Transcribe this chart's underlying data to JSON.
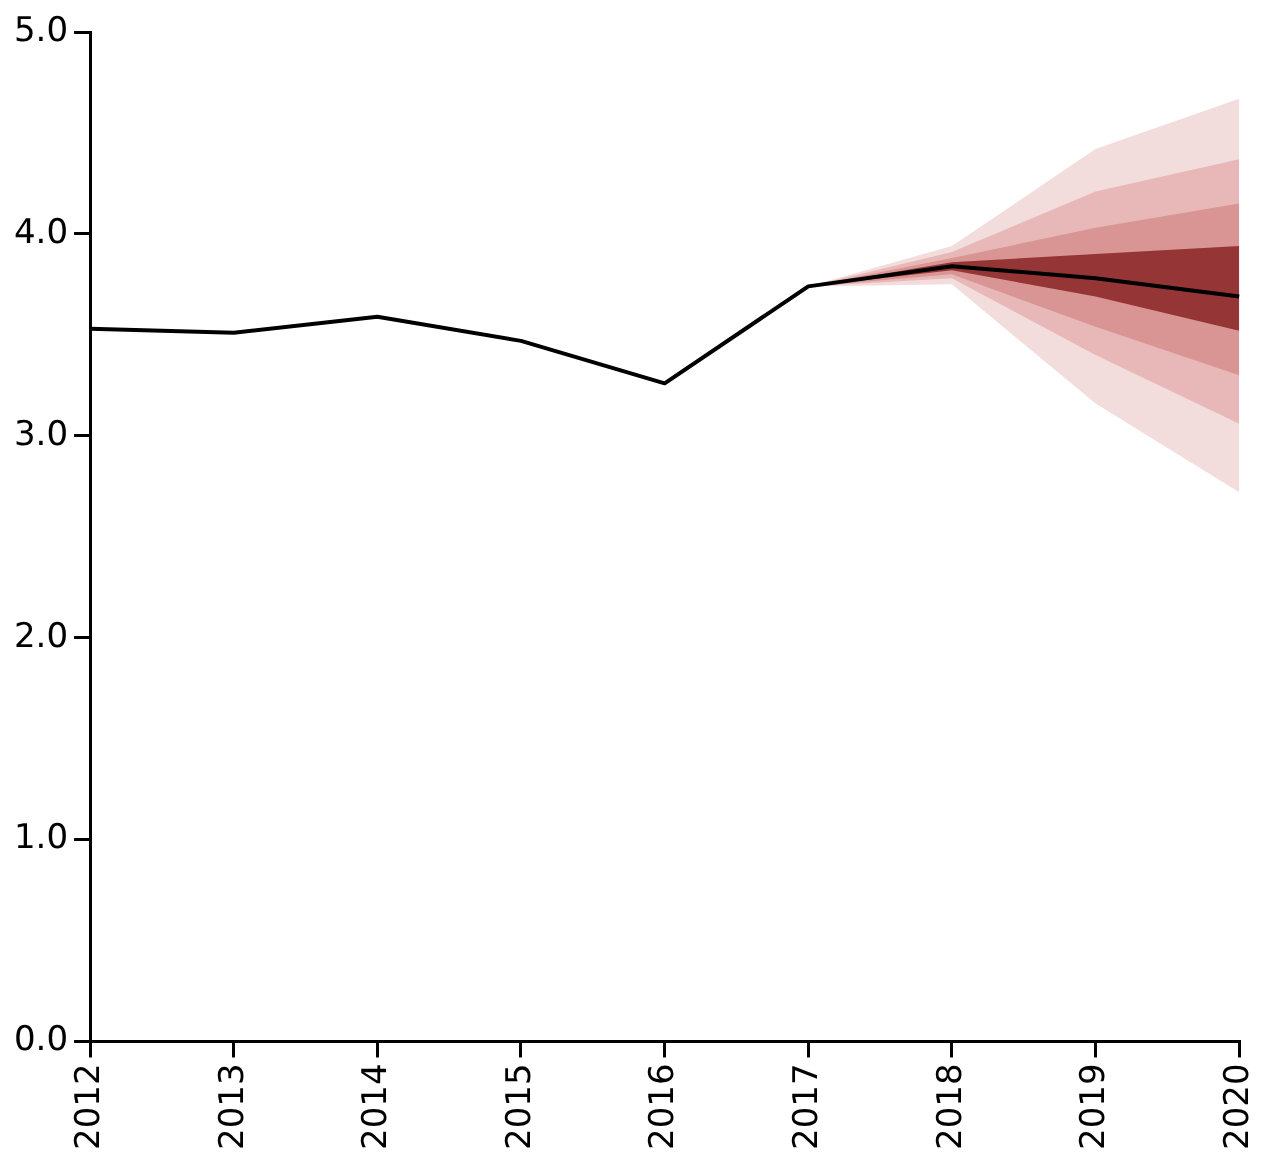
{
  "chart_data": {
    "type": "line",
    "categories": [
      "2012",
      "2013",
      "2014",
      "2015",
      "2016",
      "2017",
      "2018",
      "2019",
      "2020"
    ],
    "series": [
      {
        "color": "#000000",
        "values": [
          3.53,
          3.51,
          3.59,
          3.47,
          3.26,
          3.74,
          3.84,
          3.78,
          3.69
        ]
      },
      {
        "type": "area",
        "color": "#953535",
        "values": [
          null,
          null,
          null,
          null,
          null,
          null,
          null,
          null,
          null
        ],
        "lower": [
          null,
          null,
          null,
          null,
          null,
          3.74,
          3.82,
          3.69,
          3.52
        ],
        "upper": [
          null,
          null,
          null,
          null,
          null,
          3.74,
          3.86,
          3.9,
          3.94
        ]
      },
      {
        "type": "area",
        "color": "#d99494",
        "values": [
          null,
          null,
          null,
          null,
          null,
          null,
          null,
          null,
          null
        ],
        "lower": [
          null,
          null,
          null,
          null,
          null,
          3.74,
          3.8,
          3.54,
          3.3
        ],
        "upper": [
          null,
          null,
          null,
          null,
          null,
          3.74,
          3.88,
          4.03,
          4.15
        ]
      },
      {
        "type": "area",
        "color": "#e8b8b8",
        "values": [
          null,
          null,
          null,
          null,
          null,
          null,
          null,
          null,
          null
        ],
        "lower": [
          null,
          null,
          null,
          null,
          null,
          3.74,
          3.78,
          3.4,
          3.06
        ],
        "upper": [
          null,
          null,
          null,
          null,
          null,
          3.74,
          3.91,
          4.21,
          4.37
        ]
      },
      {
        "type": "area",
        "color": "#f2dcdc",
        "values": [
          null,
          null,
          null,
          null,
          null,
          null,
          null,
          null,
          null
        ],
        "lower": [
          null,
          null,
          null,
          null,
          null,
          3.74,
          3.75,
          3.16,
          2.72
        ],
        "upper": [
          null,
          null,
          null,
          null,
          null,
          3.74,
          3.94,
          4.42,
          4.67
        ]
      }
    ],
    "ylim": [
      0,
      5
    ],
    "yticks": [
      {
        "value": 0,
        "label": "0.0"
      },
      {
        "value": 1,
        "label": "1.0"
      },
      {
        "value": 2,
        "label": "2.0"
      },
      {
        "value": 3,
        "label": "3.0"
      },
      {
        "value": 4,
        "label": "4.0"
      },
      {
        "value": 5,
        "label": "5.0"
      }
    ],
    "marker": "none",
    "line_style": "solid"
  }
}
